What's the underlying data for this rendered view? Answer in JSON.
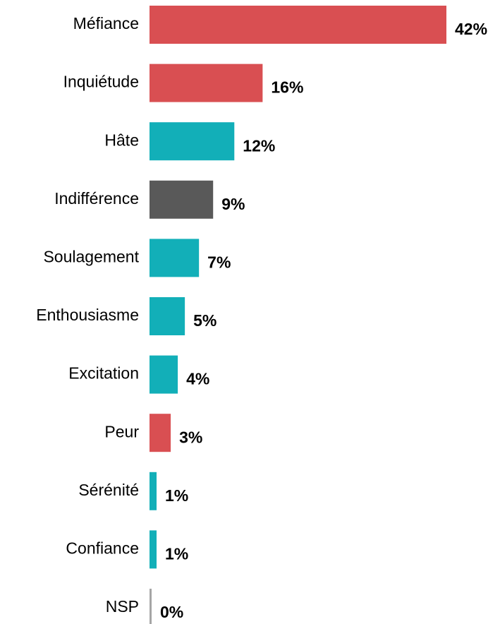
{
  "chart_data": {
    "type": "bar",
    "orientation": "horizontal",
    "categories": [
      "Méfiance",
      "Inquiétude",
      "Hâte",
      "Indifférence",
      "Soulagement",
      "Enthousiasme",
      "Excitation",
      "Peur",
      "Sérénité",
      "Confiance",
      "NSP"
    ],
    "values": [
      42,
      16,
      12,
      9,
      7,
      5,
      4,
      3,
      1,
      1,
      0
    ],
    "value_labels": [
      "42%",
      "16%",
      "12%",
      "9%",
      "7%",
      "5%",
      "4%",
      "3%",
      "1%",
      "1%",
      "0%"
    ],
    "colors": [
      "#d94f52",
      "#d94f52",
      "#12afb8",
      "#595959",
      "#12afb8",
      "#12afb8",
      "#12afb8",
      "#d94f52",
      "#12afb8",
      "#12afb8",
      "#a6a6a6"
    ],
    "xlim": [
      0,
      42
    ]
  }
}
